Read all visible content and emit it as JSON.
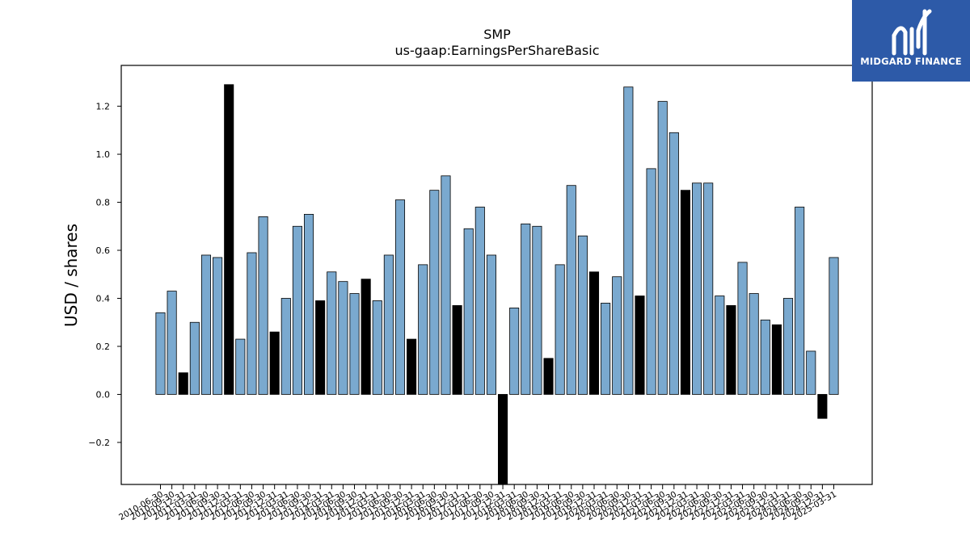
{
  "brand": {
    "name": "MIDGARD FINANCE",
    "bg_color": "#2d5aa8"
  },
  "chart_data": {
    "type": "bar",
    "title": "SMP",
    "subtitle": "us-gaap:EarningsPerShareBasic",
    "xlabel": "",
    "ylabel": "USD / shares",
    "ylim": [
      -0.375,
      1.37
    ],
    "yticks": [
      -0.2,
      0.0,
      0.2,
      0.4,
      0.6,
      0.8,
      1.0,
      1.2
    ],
    "grid": false,
    "colors": {
      "regular": "#7aa9cf",
      "highlight": "#000000",
      "edge": "#000000"
    },
    "categories": [
      "2010-06-30",
      "2010-09-30",
      "2010-12-31",
      "2011-03-31",
      "2011-06-30",
      "2011-09-30",
      "2011-12-31",
      "2012-03-31",
      "2012-06-30",
      "2012-09-30",
      "2012-12-31",
      "2013-03-31",
      "2013-06-30",
      "2013-09-30",
      "2013-12-31",
      "2014-03-31",
      "2014-06-30",
      "2014-09-30",
      "2014-12-31",
      "2015-03-31",
      "2015-06-30",
      "2015-09-30",
      "2015-12-31",
      "2016-03-31",
      "2016-06-30",
      "2016-09-30",
      "2016-12-31",
      "2017-03-31",
      "2017-06-30",
      "2017-09-30",
      "2017-12-31",
      "2018-03-31",
      "2018-06-30",
      "2018-09-30",
      "2018-12-31",
      "2019-03-31",
      "2019-06-30",
      "2019-09-30",
      "2019-12-31",
      "2020-03-31",
      "2020-06-30",
      "2020-09-30",
      "2020-12-31",
      "2021-03-31",
      "2021-06-30",
      "2021-09-30",
      "2021-12-31",
      "2022-03-31",
      "2022-06-30",
      "2022-09-30",
      "2022-12-31",
      "2023-03-31",
      "2023-06-30",
      "2023-09-30",
      "2023-12-31",
      "2024-03-31",
      "2024-06-30",
      "2024-09-30",
      "2024-12-31",
      "2025-03-31"
    ],
    "values": [
      0.34,
      0.43,
      0.09,
      0.3,
      0.58,
      0.57,
      1.29,
      0.23,
      0.59,
      0.74,
      0.26,
      0.4,
      0.7,
      0.75,
      0.39,
      0.51,
      0.47,
      0.42,
      0.48,
      0.39,
      0.58,
      0.81,
      0.23,
      0.54,
      0.85,
      0.91,
      0.37,
      0.69,
      0.78,
      0.58,
      -0.38,
      0.36,
      0.71,
      0.7,
      0.15,
      0.54,
      0.87,
      0.66,
      0.51,
      0.38,
      0.49,
      1.28,
      0.41,
      0.94,
      1.22,
      1.09,
      0.85,
      0.88,
      0.88,
      0.41,
      0.37,
      0.55,
      0.42,
      0.31,
      0.29,
      0.4,
      0.78,
      0.18,
      -0.1,
      0.57
    ],
    "highlight": [
      false,
      false,
      true,
      false,
      false,
      false,
      true,
      false,
      false,
      false,
      true,
      false,
      false,
      false,
      true,
      false,
      false,
      false,
      true,
      false,
      false,
      false,
      true,
      false,
      false,
      false,
      true,
      false,
      false,
      false,
      true,
      false,
      false,
      false,
      true,
      false,
      false,
      false,
      true,
      false,
      false,
      false,
      true,
      false,
      false,
      false,
      true,
      false,
      false,
      false,
      true,
      false,
      false,
      false,
      true,
      false,
      false,
      false,
      true,
      false
    ]
  }
}
